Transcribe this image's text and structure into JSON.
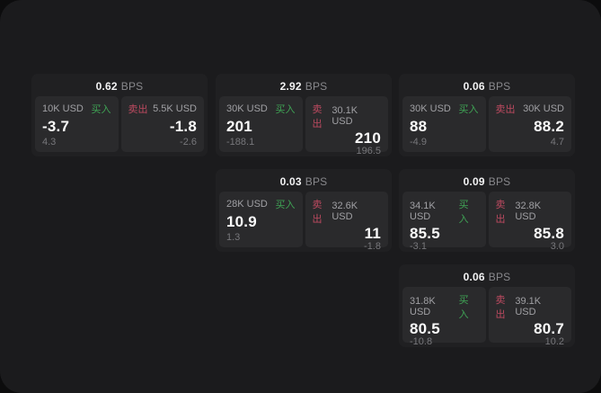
{
  "labels": {
    "bps_unit": "BPS",
    "buy": "买入",
    "sell": "卖出"
  },
  "colors": {
    "frame_bg": "#1b1b1d",
    "card_bg": "#202022",
    "panel_bg": "#2a2a2c",
    "buy_green": "#3fa355",
    "sell_red": "#bd4a60",
    "price_white": "#fafafa"
  },
  "cards": [
    {
      "bps": "0.62",
      "buy": {
        "amount": "10K USD",
        "price": "-3.7",
        "sub": "4.3"
      },
      "sell": {
        "amount": "5.5K USD",
        "price": "-1.8",
        "sub": "-2.6"
      }
    },
    {
      "bps": "2.92",
      "buy": {
        "amount": "30K USD",
        "price": "201",
        "sub": "-188.1"
      },
      "sell": {
        "amount": "30.1K USD",
        "price": "210",
        "sub": "196.5"
      }
    },
    {
      "bps": "0.06",
      "buy": {
        "amount": "30K USD",
        "price": "88",
        "sub": "-4.9"
      },
      "sell": {
        "amount": "30K USD",
        "price": "88.2",
        "sub": "4.7"
      }
    },
    {
      "bps": "0.03",
      "buy": {
        "amount": "28K USD",
        "price": "10.9",
        "sub": "1.3"
      },
      "sell": {
        "amount": "32.6K USD",
        "price": "11",
        "sub": "-1.8"
      }
    },
    {
      "bps": "0.09",
      "buy": {
        "amount": "34.1K USD",
        "price": "85.5",
        "sub": "-3.1"
      },
      "sell": {
        "amount": "32.8K USD",
        "price": "85.8",
        "sub": "3.0"
      }
    },
    {
      "bps": "0.06",
      "buy": {
        "amount": "31.8K USD",
        "price": "80.5",
        "sub": "-10.8"
      },
      "sell": {
        "amount": "39.1K USD",
        "price": "80.7",
        "sub": "10.2"
      }
    }
  ]
}
